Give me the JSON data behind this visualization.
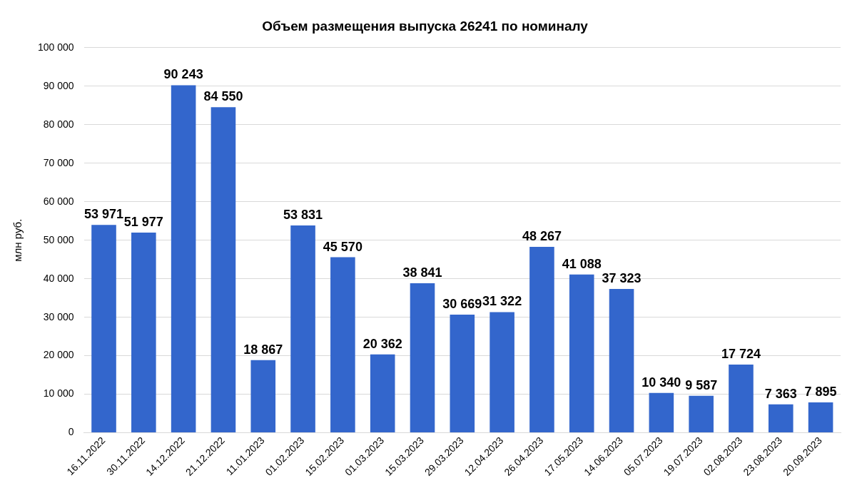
{
  "chart_data": {
    "type": "bar",
    "title": "Объем размещения выпуска 26241 по номиналу",
    "ylabel": "млн руб.",
    "categories": [
      "16.11.2022",
      "30.11.2022",
      "14.12.2022",
      "21.12.2022",
      "11.01.2023",
      "01.02.2023",
      "15.02.2023",
      "01.03.2023",
      "15.03.2023",
      "29.03.2023",
      "12.04.2023",
      "26.04.2023",
      "17.05.2023",
      "14.06.2023",
      "05.07.2023",
      "19.07.2023",
      "02.08.2023",
      "23.08.2023",
      "20.09.2023"
    ],
    "values": [
      53971,
      51977,
      90243,
      84550,
      18867,
      53831,
      45570,
      20362,
      38841,
      30669,
      31322,
      48267,
      41088,
      37323,
      10340,
      9587,
      17724,
      7363,
      7895
    ],
    "value_labels": [
      "53 971",
      "51 977",
      "90 243",
      "84 550",
      "18 867",
      "53 831",
      "45 570",
      "20 362",
      "38 841",
      "30 669",
      "31 322",
      "48 267",
      "41 088",
      "37 323",
      "10 340",
      "9 587",
      "17 724",
      "7 363",
      "7 895"
    ],
    "color": "#3366cc",
    "ylim": [
      0,
      100000
    ],
    "yticks": [
      0,
      {
        "value": 10000,
        "label": "10 000"
      },
      {
        "value": 20000,
        "label": "20 000"
      },
      {
        "value": 30000,
        "label": "30 000"
      },
      {
        "value": 40000,
        "label": "40 000"
      },
      {
        "value": 50000,
        "label": "50 000"
      },
      {
        "value": 60000,
        "label": "60 000"
      },
      {
        "value": 70000,
        "label": "70 000"
      },
      {
        "value": 80000,
        "label": "80 000"
      },
      {
        "value": 90000,
        "label": "90 000"
      },
      {
        "value": 100000,
        "label": "100 000"
      }
    ],
    "grid": "y",
    "legend": false
  }
}
